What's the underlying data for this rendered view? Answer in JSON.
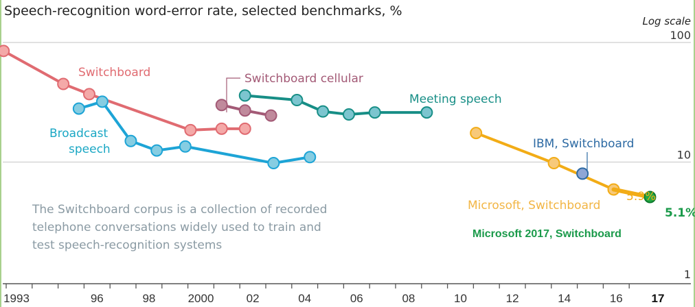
{
  "chart_data": {
    "type": "line",
    "title": "Speech-recognition word-error rate, selected benchmarks, %",
    "scale_note": "Log scale",
    "xlabel": "",
    "ylabel": "",
    "yscale": "log",
    "ylim": [
      1,
      100
    ],
    "xlim": [
      1993,
      2017.5
    ],
    "yticks": [
      {
        "value": 100,
        "label": "100"
      },
      {
        "value": 10,
        "label": "10"
      },
      {
        "value": 1,
        "label": "1"
      }
    ],
    "xticks": [
      {
        "year": 1993,
        "label": "1993",
        "bold": false
      },
      {
        "year": 1996,
        "label": "96",
        "bold": false
      },
      {
        "year": 1998,
        "label": "98",
        "bold": false
      },
      {
        "year": 2000,
        "label": "2000",
        "bold": false
      },
      {
        "year": 2002,
        "label": "02",
        "bold": false
      },
      {
        "year": 2004,
        "label": "04",
        "bold": false
      },
      {
        "year": 2006,
        "label": "06",
        "bold": false
      },
      {
        "year": 2008,
        "label": "08",
        "bold": false
      },
      {
        "year": 2010,
        "label": "10",
        "bold": false
      },
      {
        "year": 2012,
        "label": "12",
        "bold": false
      },
      {
        "year": 2014,
        "label": "14",
        "bold": false
      },
      {
        "year": 2016,
        "label": "16",
        "bold": false
      },
      {
        "year": 2017,
        "label": "17",
        "bold": true
      }
    ],
    "grid": true,
    "series": [
      {
        "name": "Switchboard",
        "color": "#e06b71",
        "fill": "#f4a9a8",
        "points": [
          [
            1992.8,
            85
          ],
          [
            1995.1,
            45
          ],
          [
            1996.1,
            37
          ],
          [
            2000.0,
            18.5
          ],
          [
            2001.2,
            19
          ],
          [
            2002.1,
            19
          ]
        ]
      },
      {
        "name": "Broadcast speech",
        "color": "#1da4d6",
        "fill": "#86cde2",
        "points": [
          [
            1995.7,
            28
          ],
          [
            1996.6,
            32
          ],
          [
            1997.7,
            15
          ],
          [
            1998.7,
            12.5
          ],
          [
            1999.8,
            13.5
          ],
          [
            2003.2,
            9.8
          ],
          [
            2004.6,
            11
          ]
        ]
      },
      {
        "name": "Switchboard cellular",
        "color": "#a35a76",
        "fill": "#c08a9c",
        "points": [
          [
            2001.2,
            30
          ],
          [
            2002.1,
            27
          ],
          [
            2003.1,
            24.5
          ]
        ]
      },
      {
        "name": "Meeting speech",
        "color": "#178e86",
        "fill": "#7cc5cf",
        "points": [
          [
            2002.1,
            36
          ],
          [
            2004.1,
            33
          ],
          [
            2005.1,
            26.5
          ],
          [
            2006.1,
            25
          ],
          [
            2007.1,
            26
          ],
          [
            2009.1,
            26
          ]
        ]
      },
      {
        "name": "Microsoft, Switchboard",
        "color": "#f2ac16",
        "fill": "#f7c97a",
        "points": [
          [
            2011.0,
            17.5
          ],
          [
            2014.0,
            9.8
          ],
          [
            2016.3,
            5.9
          ]
        ]
      },
      {
        "name": "IBM, Switchboard",
        "color": "#2d6aa3",
        "fill": "#8ea6d6",
        "points": [
          [
            2015.1,
            8.0
          ]
        ]
      },
      {
        "name": "Microsoft 2017, Switchboard",
        "color": "#0d7a2d",
        "fill": "#22a843",
        "points": [
          [
            2017.7,
            5.1
          ]
        ]
      }
    ],
    "annotations": [
      {
        "text": "5.9%",
        "series": "Microsoft, Switchboard",
        "color": "#f2ac16"
      },
      {
        "text": "5.1%",
        "series": "Microsoft 2017, Switchboard",
        "color": "#1a9a4a"
      },
      {
        "text": "The Switchboard corpus is a collection of recorded",
        "role": "note-line-1"
      },
      {
        "text": "telephone conversations widely used to train and",
        "role": "note-line-2"
      },
      {
        "text": "test speech-recognition systems",
        "role": "note-line-3"
      }
    ],
    "labels": {
      "switchboard": "Switchboard",
      "broadcast_1": "Broadcast",
      "broadcast_2": "speech",
      "cellular": "Switchboard cellular",
      "meeting": "Meeting speech",
      "ibm": "IBM, Switchboard",
      "microsoft": "Microsoft, Switchboard",
      "microsoft2017": "Microsoft 2017, Switchboard"
    }
  }
}
